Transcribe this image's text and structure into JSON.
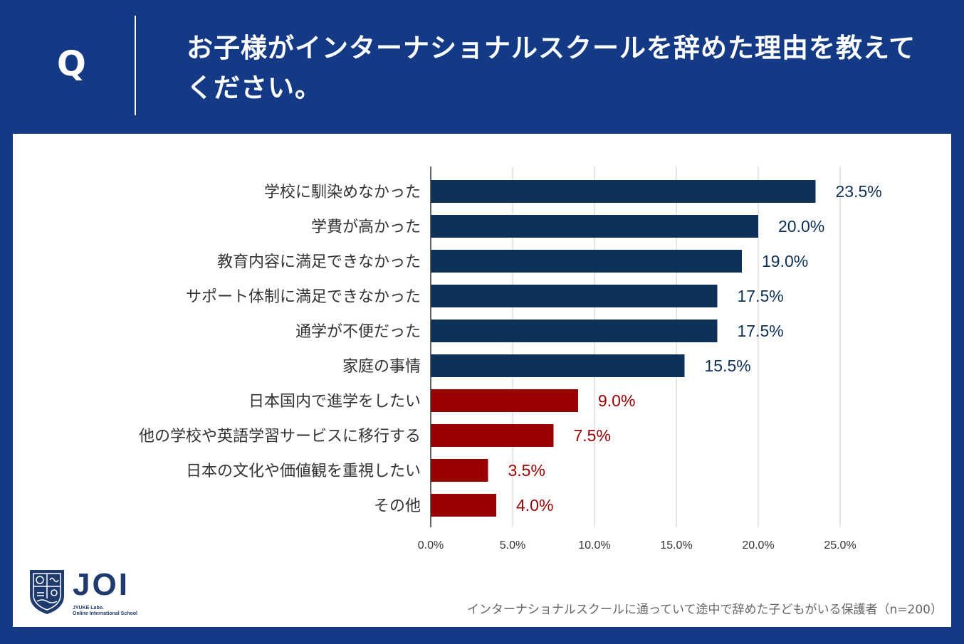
{
  "header": {
    "q_letter": "Q",
    "question": "お子様がインターナショナルスクールを辞めた理由を教えてください。"
  },
  "chart_data": {
    "type": "bar",
    "orientation": "horizontal",
    "categories": [
      "学校に馴染めなかった",
      "学費が高かった",
      "教育内容に満足できなかった",
      "サポート体制に満足できなかった",
      "通学が不便だった",
      "家庭の事情",
      "日本国内で進学をしたい",
      "他の学校や英語学習サービスに移行する",
      "日本の文化や価値観を重視したい",
      "その他"
    ],
    "values": [
      23.5,
      20.0,
      19.0,
      17.5,
      17.5,
      15.5,
      9.0,
      7.5,
      3.5,
      4.0
    ],
    "value_labels": [
      "23.5%",
      "20.0%",
      "19.0%",
      "17.5%",
      "17.5%",
      "15.5%",
      "9.0%",
      "7.5%",
      "3.5%",
      "4.0%"
    ],
    "bar_colors": [
      "#0d3157",
      "#0d3157",
      "#0d3157",
      "#0d3157",
      "#0d3157",
      "#0d3157",
      "#990000",
      "#990000",
      "#990000",
      "#990000"
    ],
    "x_ticks": [
      "0.0%",
      "5.0%",
      "10.0%",
      "15.0%",
      "20.0%",
      "25.0%"
    ],
    "xlim": [
      0,
      25
    ],
    "grid": true
  },
  "colors": {
    "header_bg": "#143a85",
    "bar_navy": "#0d3157",
    "bar_red": "#990000"
  },
  "logo": {
    "name": "JOI",
    "line1": "JYUKE Labo.",
    "line2": "Online International School"
  },
  "footnote": "インターナショナルスクールに通っていて途中で辞めた子どもがいる保護者（n=200）"
}
